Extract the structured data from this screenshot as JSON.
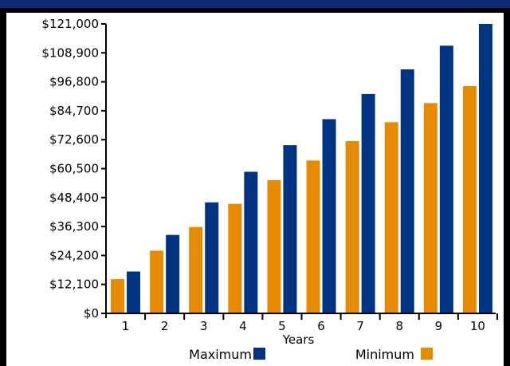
{
  "title": "",
  "chart_data": {
    "type": "bar",
    "title": "",
    "xlabel": "Years",
    "ylabel": "",
    "categories": [
      "1",
      "2",
      "3",
      "4",
      "5",
      "6",
      "7",
      "8",
      "9",
      "10"
    ],
    "series": [
      {
        "name": "Minimum",
        "color": "#e68a00",
        "values": [
          14300,
          26200,
          36100,
          45800,
          55700,
          63900,
          72000,
          79900,
          87900,
          95000
        ]
      },
      {
        "name": "Maximum",
        "color": "#003382",
        "values": [
          17500,
          32800,
          46400,
          59200,
          70300,
          81200,
          91700,
          102000,
          111900,
          121000
        ]
      }
    ],
    "ylim": [
      0,
      121000
    ],
    "yticks": [
      "$0",
      "$12,100",
      "$24,200",
      "$36,300",
      "$48,400",
      "$60,500",
      "$72,600",
      "$84,700",
      "$96,800",
      "$108,900",
      "$121,000"
    ],
    "legend": {
      "placement": "bottom",
      "items": [
        {
          "label": "Maximum",
          "color": "#003382"
        },
        {
          "label": "Minimum",
          "color": "#e68a00"
        }
      ]
    },
    "grid": false
  }
}
